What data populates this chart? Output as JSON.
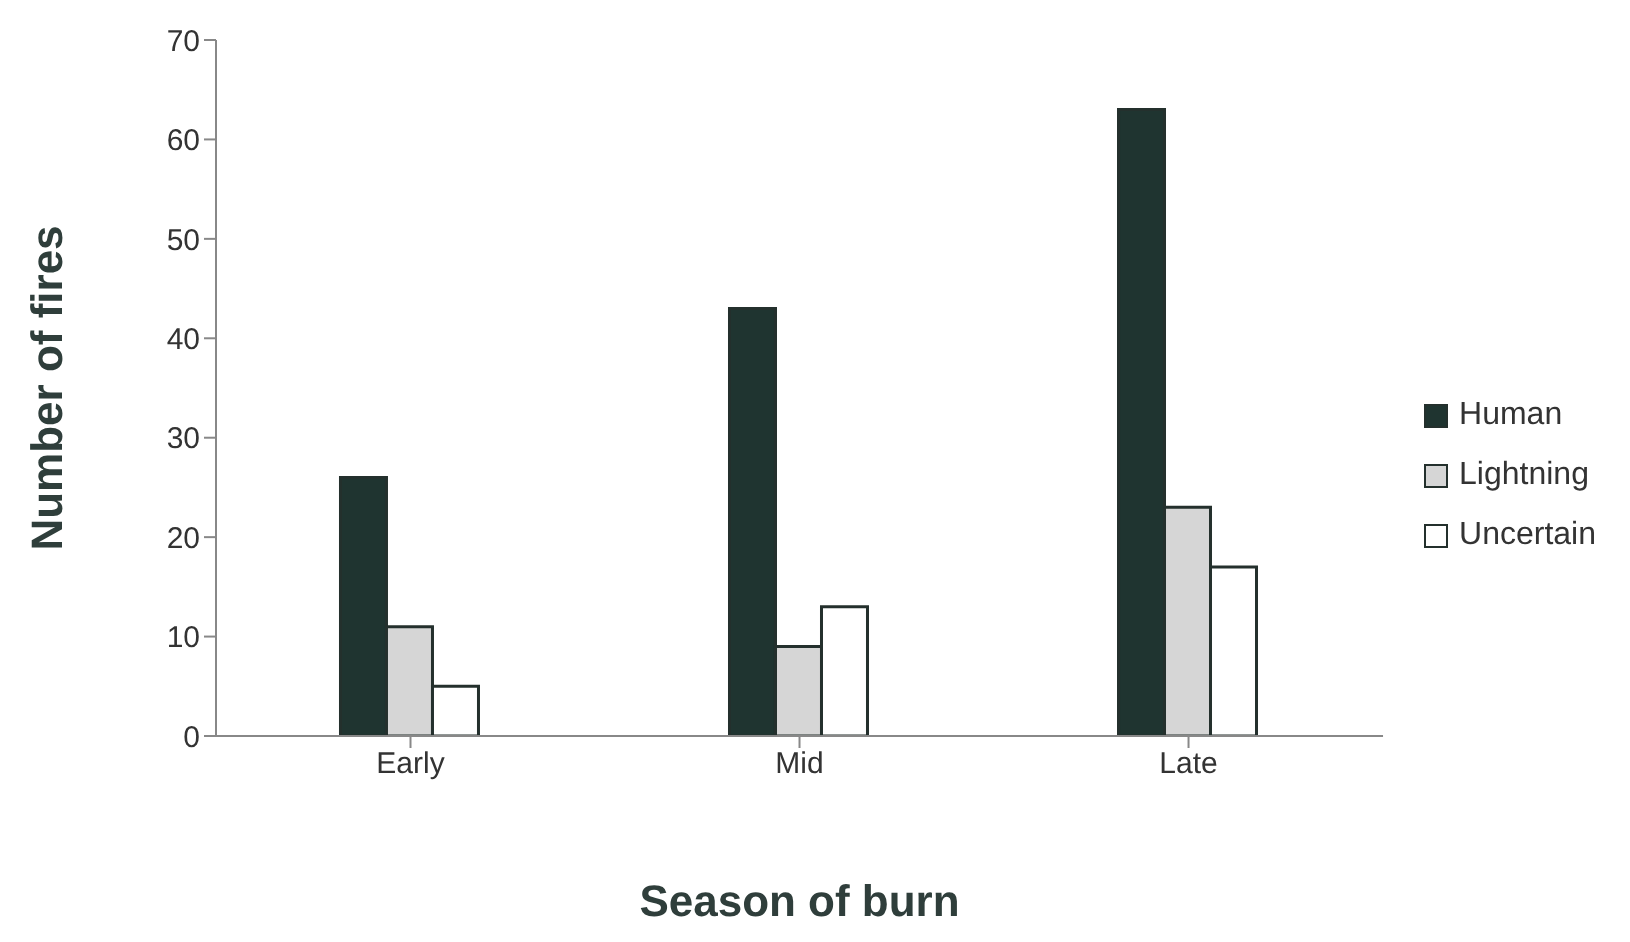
{
  "chart_data": {
    "type": "bar",
    "xlabel": "Season of burn",
    "ylabel": "Number of fires",
    "categories": [
      "Early",
      "Mid",
      "Late"
    ],
    "series": [
      {
        "name": "Human",
        "color": "#1f3430",
        "values": [
          26,
          43,
          63
        ]
      },
      {
        "name": "Lightning",
        "color": "#d6d6d6",
        "values": [
          11,
          9,
          23
        ]
      },
      {
        "name": "Uncertain",
        "color": "#ffffff",
        "values": [
          5,
          13,
          17
        ]
      }
    ],
    "ylim": [
      0,
      70
    ],
    "yticks": [
      0,
      10,
      20,
      30,
      40,
      50,
      60,
      70
    ],
    "grid": false,
    "legend": "right"
  }
}
